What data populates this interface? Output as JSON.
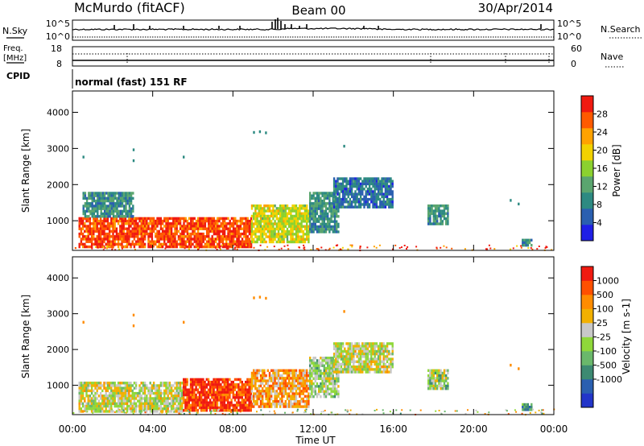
{
  "header": {
    "station": "McMurdo (fitACF)",
    "beam": "Beam 00",
    "date": "30/Apr/2014"
  },
  "noise_panel": {
    "left_label": "N.Sky",
    "right_label": "N.Search",
    "left_ticks": [
      "10^5",
      "10^0"
    ],
    "right_ticks": [
      "10^5",
      "10^0"
    ]
  },
  "freq_panel": {
    "left_label_1": "Freq.",
    "left_label_2": "[MHz]",
    "right_label": "Nave",
    "left_ticks": [
      "18",
      "8"
    ],
    "right_ticks": [
      "60",
      "0"
    ]
  },
  "cpid": {
    "label": "CPID",
    "text": "normal (fast) 151 RF"
  },
  "chart_data": [
    {
      "type": "heatmap",
      "title": "",
      "xlabel": "",
      "ylabel": "Slant Range [km]",
      "xlim": [
        "00:00",
        "24:00"
      ],
      "ylim": [
        180,
        4590
      ],
      "x_ticks": [
        "00:00",
        "04:00",
        "08:00",
        "12:00",
        "16:00",
        "20:00",
        "00:00"
      ],
      "y_ticks": [
        "1000",
        "2000",
        "3000",
        "4000"
      ],
      "colorbar": {
        "label": "Power [dB]",
        "range": [
          0,
          32
        ],
        "ticks": [
          "4",
          "8",
          "12",
          "16",
          "20",
          "24",
          "28"
        ],
        "colors": [
          "#1f1fe6",
          "#2a5fb0",
          "#2d8a82",
          "#5aa56f",
          "#8bd12f",
          "#f2d200",
          "#ffa200",
          "#ff5a00",
          "#f01a10"
        ]
      },
      "regions": [
        {
          "t": [
            0.3,
            8.9
          ],
          "r": [
            250,
            1100
          ],
          "value": 28
        },
        {
          "t": [
            8.9,
            11.8
          ],
          "r": [
            400,
            1450
          ],
          "value": 18
        },
        {
          "t": [
            11.8,
            13.3
          ],
          "r": [
            700,
            1800
          ],
          "value": 10
        },
        {
          "t": [
            13.0,
            16.0
          ],
          "r": [
            1400,
            2200
          ],
          "value": 7
        },
        {
          "t": [
            0.5,
            3.0
          ],
          "r": [
            1100,
            1800
          ],
          "value": 10
        },
        {
          "t": [
            17.7,
            18.7
          ],
          "r": [
            900,
            1450
          ],
          "value": 10
        },
        {
          "t": [
            22.4,
            22.9
          ],
          "r": [
            320,
            500
          ],
          "value": 10
        }
      ]
    },
    {
      "type": "heatmap",
      "title": "",
      "xlabel": "Time UT",
      "ylabel": "Slant Range [km]",
      "xlim": [
        "00:00",
        "24:00"
      ],
      "ylim": [
        180,
        4590
      ],
      "x_ticks": [
        "00:00",
        "04:00",
        "08:00",
        "12:00",
        "16:00",
        "20:00",
        "00:00"
      ],
      "y_ticks": [
        "1000",
        "2000",
        "3000",
        "4000"
      ],
      "colorbar": {
        "label": "Velocity [m s-1]",
        "range": [
          -1250,
          1250
        ],
        "ticks": [
          "1000",
          "500",
          "100",
          "25",
          "-25",
          "-100",
          "-500",
          "-1000"
        ],
        "colors": [
          "#2235c9",
          "#2a5fb0",
          "#3d8a72",
          "#6ab86b",
          "#8fd83a",
          "#c8c8c8",
          "#f2b000",
          "#ff8c00",
          "#ff5000",
          "#f01a10"
        ]
      },
      "regions": [
        {
          "t": [
            0.3,
            5.5
          ],
          "r": [
            250,
            1100
          ],
          "value": 100
        },
        {
          "t": [
            5.5,
            8.9
          ],
          "r": [
            300,
            1200
          ],
          "value": 1000
        },
        {
          "t": [
            8.9,
            11.8
          ],
          "r": [
            400,
            1450
          ],
          "value": 500
        },
        {
          "t": [
            11.8,
            13.3
          ],
          "r": [
            700,
            1800
          ],
          "value": -100
        },
        {
          "t": [
            13.0,
            16.0
          ],
          "r": [
            1400,
            2200
          ],
          "value": 100
        },
        {
          "t": [
            17.7,
            18.7
          ],
          "r": [
            900,
            1450
          ],
          "value": -100
        },
        {
          "t": [
            22.4,
            22.9
          ],
          "r": [
            320,
            500
          ],
          "value": -500
        }
      ]
    }
  ]
}
